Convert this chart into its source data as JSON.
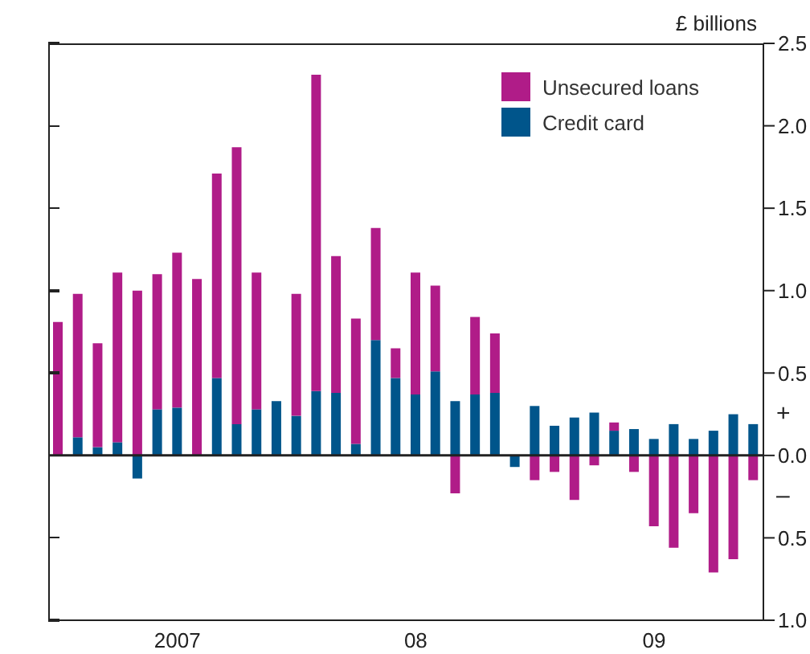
{
  "chart_data": {
    "type": "bar",
    "ylabel": "£ billions",
    "stacked": true,
    "legend": "top right",
    "categories": [
      null,
      null,
      null,
      null,
      null,
      null,
      "2007",
      null,
      null,
      null,
      null,
      null,
      null,
      null,
      null,
      null,
      null,
      null,
      "08",
      null,
      null,
      null,
      null,
      null,
      null,
      null,
      null,
      null,
      null,
      null,
      "09",
      null,
      null,
      null,
      null,
      null
    ],
    "series": [
      {
        "name": "Credit card",
        "color": "#00558b",
        "values": [
          null,
          0.11,
          0.05,
          0.08,
          -0.14,
          0.28,
          0.29,
          null,
          0.47,
          0.19,
          0.28,
          0.33,
          0.24,
          0.39,
          0.38,
          0.07,
          0.7,
          0.47,
          0.37,
          0.51,
          0.33,
          0.37,
          0.38,
          -0.07,
          0.3,
          0.18,
          0.23,
          0.26,
          0.15,
          0.16,
          0.1,
          0.19,
          0.1,
          0.15,
          0.25,
          0.19
        ]
      },
      {
        "name": "Unsecured loans",
        "color": "#b01c88",
        "values": [
          0.81,
          0.87,
          0.63,
          1.03,
          1.0,
          0.82,
          0.94,
          1.07,
          1.24,
          1.68,
          0.83,
          0,
          0.74,
          1.92,
          0.83,
          0.76,
          0.68,
          0.18,
          0.74,
          0.52,
          -0.23,
          0.47,
          0.36,
          null,
          -0.15,
          -0.1,
          -0.27,
          -0.06,
          0.05,
          -0.1,
          -0.43,
          -0.56,
          -0.35,
          -0.71,
          -0.63,
          -0.15
        ]
      }
    ],
    "ylim": [
      -1,
      2.5
    ],
    "yticks": [
      {
        "value": -1,
        "label": "1.0"
      },
      {
        "value": -0.5,
        "label": "0.5"
      },
      {
        "value": 0,
        "label": "0.0"
      },
      {
        "value": 0.5,
        "label": "0.5"
      },
      {
        "value": 1,
        "label": "1.0"
      },
      {
        "value": 1.5,
        "label": "1.5"
      },
      {
        "value": 2,
        "label": "2.0"
      },
      2.5
    ],
    "ref_lines": [
      {
        "axis": "y",
        "value": 0
      }
    ],
    "annotations": [
      "+",
      "–"
    ]
  }
}
